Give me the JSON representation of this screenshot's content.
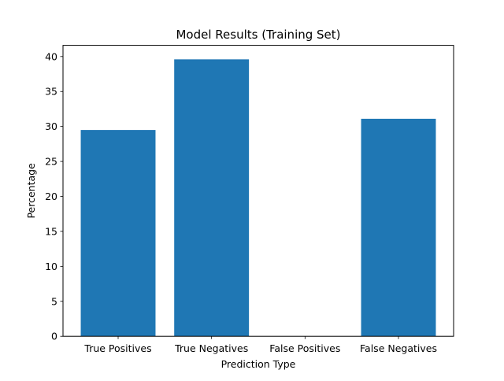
{
  "chart_data": {
    "type": "bar",
    "title": "Model Results (Training Set)",
    "xlabel": "Prediction Type",
    "ylabel": "Percentage",
    "categories": [
      "True Positives",
      "True Negatives",
      "False Positives",
      "False Negatives"
    ],
    "values": [
      29.5,
      39.6,
      0,
      31.1
    ],
    "ylim": [
      0,
      41.6
    ],
    "yticks": [
      "0",
      "5",
      "10",
      "15",
      "20",
      "25",
      "30",
      "35",
      "40"
    ],
    "bar_color": "#1f77b4",
    "grid": false,
    "legend": "none"
  }
}
